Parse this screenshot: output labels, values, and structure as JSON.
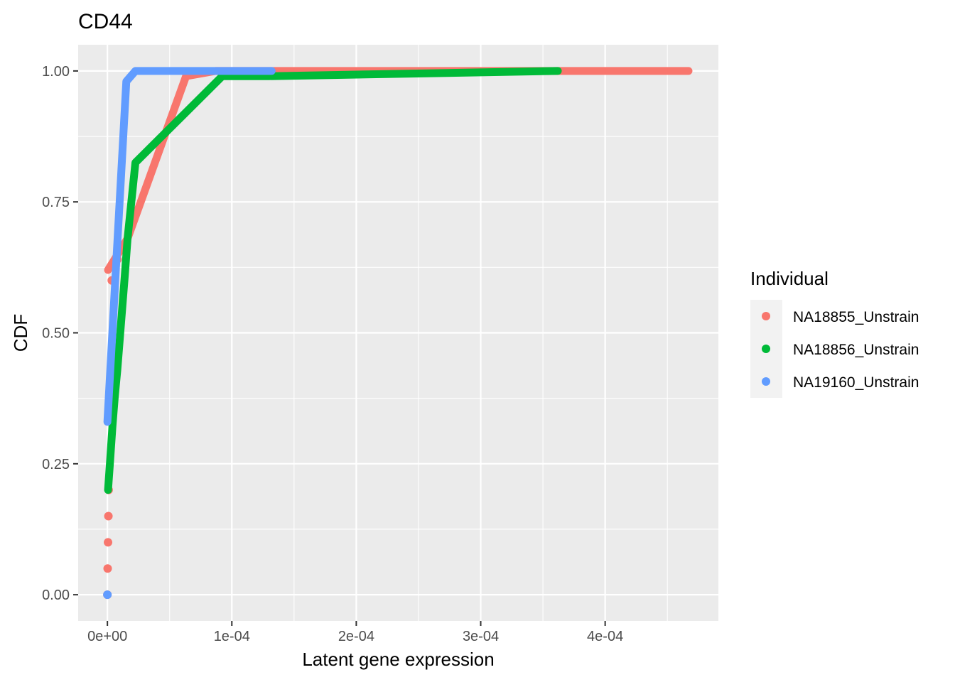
{
  "chart_data": {
    "type": "line",
    "title": "CD44",
    "xlabel": "Latent gene expression",
    "ylabel": "CDF",
    "xlim": [
      -2.35e-05,
      0.000491
    ],
    "ylim": [
      -0.05,
      1.05
    ],
    "x_ticks": [
      {
        "value": 0,
        "label": "0e+00"
      },
      {
        "value": 0.0001,
        "label": "1e-04"
      },
      {
        "value": 0.0002,
        "label": "2e-04"
      },
      {
        "value": 0.0003,
        "label": "3e-04"
      },
      {
        "value": 0.0004,
        "label": "4e-04"
      }
    ],
    "y_ticks": [
      {
        "value": 0,
        "label": "0.00"
      },
      {
        "value": 0.25,
        "label": "0.25"
      },
      {
        "value": 0.5,
        "label": "0.50"
      },
      {
        "value": 0.75,
        "label": "0.75"
      },
      {
        "value": 1.0,
        "label": "1.00"
      }
    ],
    "grid": true,
    "legend": {
      "title": "Individual",
      "position": "right"
    },
    "series": [
      {
        "name": "NA18855_Unstrain",
        "color": "#F8766D",
        "line": [
          [
            5e-07,
            0.62
          ],
          [
            1.62e-05,
            0.68
          ],
          [
            6.32e-05,
            0.99
          ],
          [
            8.7e-05,
            1.0
          ],
          [
            0.000467,
            1.0
          ]
        ],
        "points": [
          [
            0,
            0
          ],
          [
            2e-07,
            0.05
          ],
          [
            5e-07,
            0.1
          ],
          [
            8e-07,
            0.15
          ],
          [
            1e-06,
            0.2
          ],
          [
            3.5e-06,
            0.6
          ],
          [
            5e-06,
            0.625
          ],
          [
            8e-06,
            0.64
          ],
          [
            1.1e-05,
            0.66
          ]
        ]
      },
      {
        "name": "NA18856_Unstrain",
        "color": "#00BA38",
        "line": [
          [
            5e-07,
            0.2
          ],
          [
            2e-06,
            0.25
          ],
          [
            4e-06,
            0.32
          ],
          [
            6e-06,
            0.38
          ],
          [
            8e-06,
            0.43
          ],
          [
            1e-05,
            0.49
          ],
          [
            1.2e-05,
            0.55
          ],
          [
            1.4e-05,
            0.61
          ],
          [
            1.62e-05,
            0.68
          ],
          [
            2.25e-05,
            0.825
          ],
          [
            9.23e-05,
            0.99
          ],
          [
            0.00013,
            0.99
          ],
          [
            0.000362,
            1.0
          ]
        ],
        "points": []
      },
      {
        "name": "NA19160_Unstrain",
        "color": "#619CFF",
        "line": [
          [
            0,
            0.33
          ],
          [
            1.52e-05,
            0.98
          ],
          [
            2.25e-05,
            1.0
          ],
          [
            0.000132,
            1.0
          ]
        ],
        "points": [
          [
            0,
            0
          ]
        ]
      }
    ]
  }
}
